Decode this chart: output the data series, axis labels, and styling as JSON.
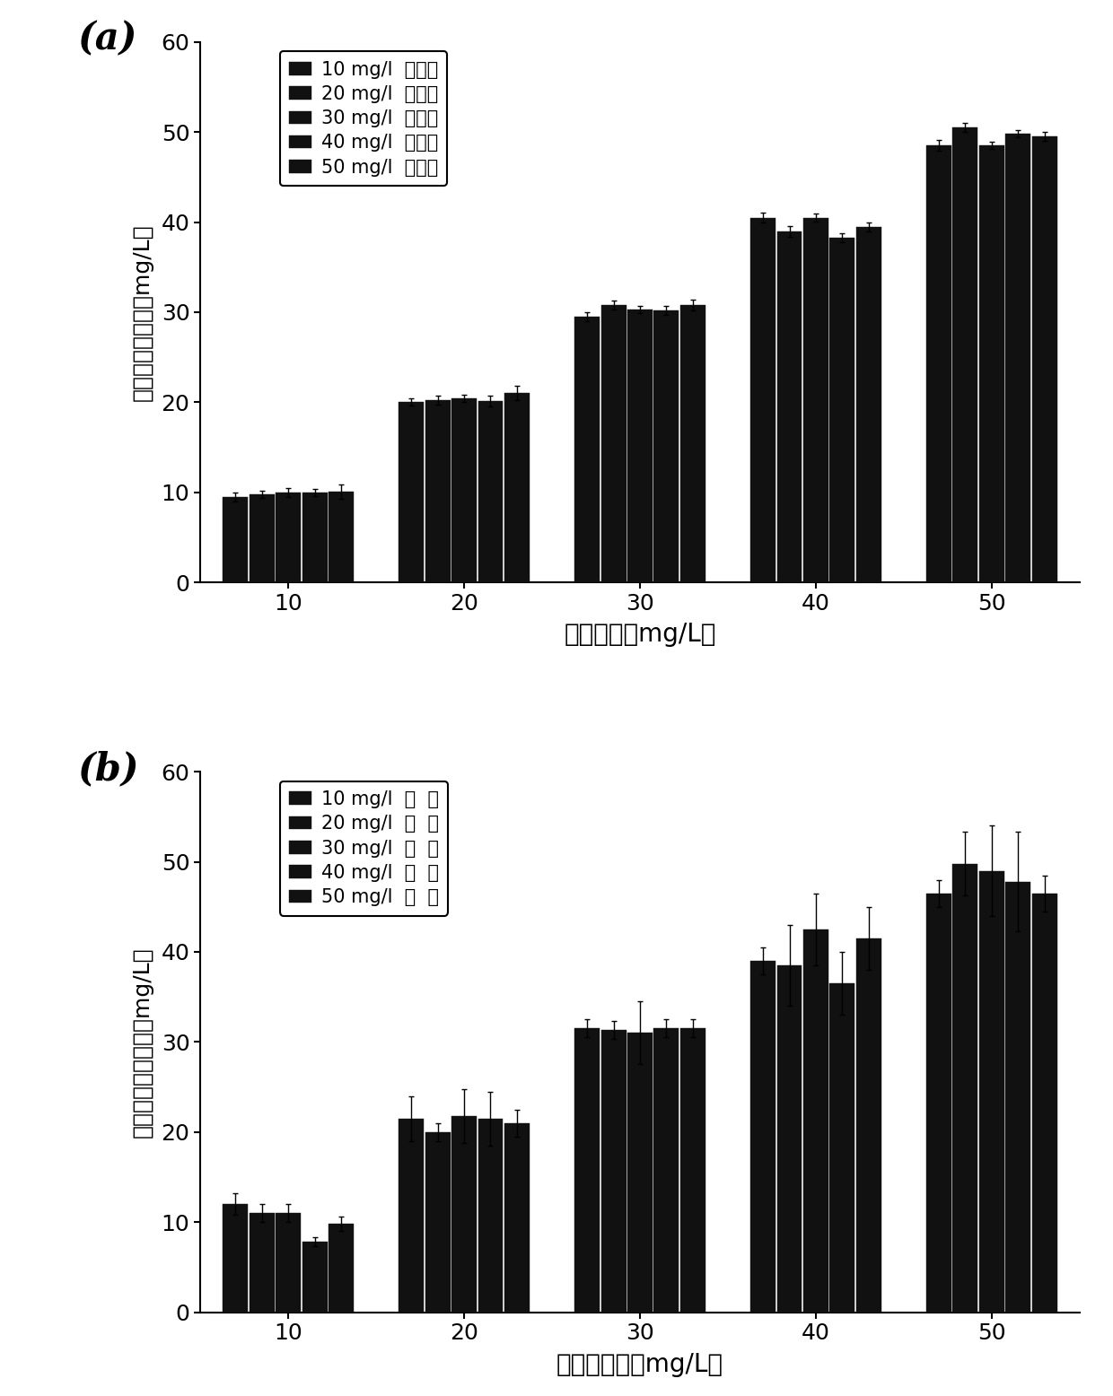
{
  "panel_a": {
    "label": "(a)",
    "xlabel": "果糖浓度（mg/L）",
    "ylabel": "果糖浓度测量值（mg/L）",
    "x_ticks": [
      10,
      20,
      30,
      40,
      50
    ],
    "ylim": [
      0,
      60
    ],
    "yticks": [
      0,
      10,
      20,
      30,
      40,
      50,
      60
    ],
    "legend_labels": [
      "10 mg/l  葡萄糖",
      "20 mg/l  葡萄糖",
      "30 mg/l  葡萄糖",
      "40 mg/l  葡萄糖",
      "50 mg/l  葡萄糖"
    ],
    "bar_values": [
      [
        9.5,
        9.8,
        10.0,
        10.0,
        10.1
      ],
      [
        20.0,
        20.2,
        20.4,
        20.1,
        21.0
      ],
      [
        29.5,
        30.8,
        30.3,
        30.2,
        30.8
      ],
      [
        40.5,
        39.0,
        40.5,
        38.3,
        39.5
      ],
      [
        48.5,
        50.5,
        48.5,
        49.8,
        49.5
      ]
    ],
    "bar_errors": [
      [
        0.5,
        0.4,
        0.5,
        0.4,
        0.8
      ],
      [
        0.4,
        0.5,
        0.4,
        0.6,
        0.8
      ],
      [
        0.5,
        0.5,
        0.4,
        0.5,
        0.6
      ],
      [
        0.5,
        0.6,
        0.4,
        0.5,
        0.5
      ],
      [
        0.6,
        0.5,
        0.4,
        0.4,
        0.5
      ]
    ]
  },
  "panel_b": {
    "label": "(b)",
    "xlabel": "葡萄糖浓度（mg/L）",
    "ylabel": "葡萄糖浓度测量值（mg/L）",
    "x_ticks": [
      10,
      20,
      30,
      40,
      50
    ],
    "ylim": [
      0,
      60
    ],
    "yticks": [
      0,
      10,
      20,
      30,
      40,
      50,
      60
    ],
    "legend_labels": [
      "10 mg/l  果  糖",
      "20 mg/l  果  糖",
      "30 mg/l  果  糖",
      "40 mg/l  果  糖",
      "50 mg/l  果  糖"
    ],
    "bar_values": [
      [
        12.0,
        11.0,
        11.0,
        7.8,
        9.8
      ],
      [
        21.5,
        20.0,
        21.8,
        21.5,
        21.0
      ],
      [
        31.5,
        31.3,
        31.0,
        31.5,
        31.5
      ],
      [
        39.0,
        38.5,
        42.5,
        36.5,
        41.5
      ],
      [
        46.5,
        49.8,
        49.0,
        47.8,
        46.5
      ]
    ],
    "bar_errors": [
      [
        1.2,
        1.0,
        1.0,
        0.5,
        0.8
      ],
      [
        2.5,
        1.0,
        3.0,
        3.0,
        1.5
      ],
      [
        1.0,
        1.0,
        3.5,
        1.0,
        1.0
      ],
      [
        1.5,
        4.5,
        4.0,
        3.5,
        3.5
      ],
      [
        1.5,
        3.5,
        5.0,
        5.5,
        2.0
      ]
    ]
  },
  "bar_color": "#111111",
  "bar_width": 0.15,
  "background_color": "#ffffff"
}
